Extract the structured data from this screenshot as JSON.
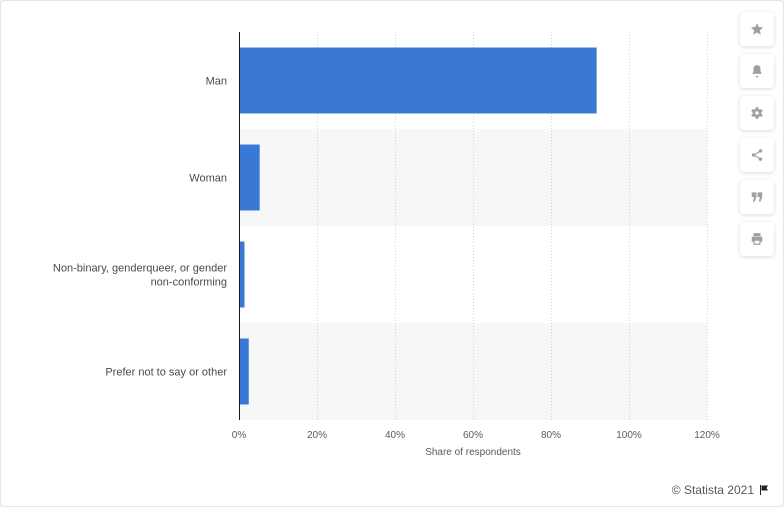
{
  "chart_data": {
    "type": "bar",
    "orientation": "horizontal",
    "categories": [
      "Man",
      "Woman",
      "Non-binary, genderqueer, or gender non-conforming",
      "Prefer not to say or other"
    ],
    "category_lines": [
      [
        "Man"
      ],
      [
        "Woman"
      ],
      [
        "Non-binary, genderqueer, or gender",
        "non-conforming"
      ],
      [
        "Prefer not to say or other"
      ]
    ],
    "values": [
      91.7,
      5.3,
      1.4,
      2.5
    ],
    "xlim": [
      0,
      120
    ],
    "xticks": [
      "0%",
      "20%",
      "40%",
      "60%",
      "80%",
      "100%",
      "120%"
    ],
    "xlabel": "Share of respondents",
    "ylabel": "",
    "grid": true,
    "bar_color": "#3a78d6"
  },
  "toolbar": {
    "buttons": [
      {
        "icon": "star-icon"
      },
      {
        "icon": "bell-icon"
      },
      {
        "icon": "gear-icon"
      },
      {
        "icon": "share-icon"
      },
      {
        "icon": "quote-icon"
      },
      {
        "icon": "print-icon"
      }
    ]
  },
  "credit": {
    "text": "© Statista 2021",
    "icon": "flag-icon"
  }
}
